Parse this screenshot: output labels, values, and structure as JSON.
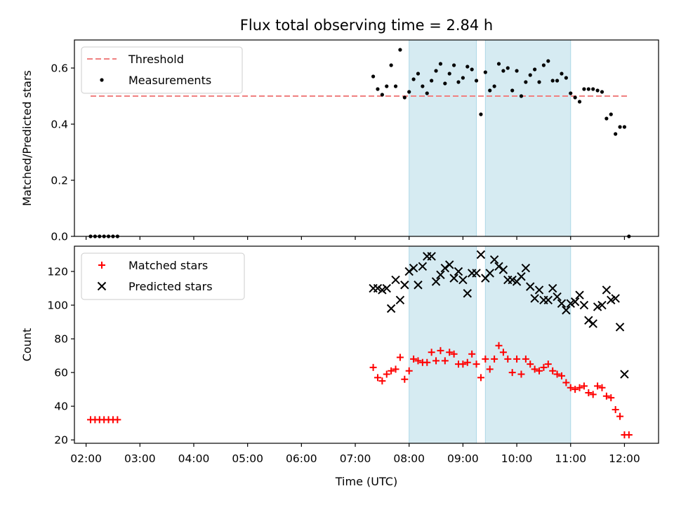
{
  "title": "Flux total observing time = 2.84 h",
  "xlabel": "Time (UTC)",
  "x_ticks": [
    "02:00",
    "03:00",
    "04:00",
    "05:00",
    "06:00",
    "07:00",
    "08:00",
    "09:00",
    "10:00",
    "11:00",
    "12:00"
  ],
  "chart_data": [
    {
      "type": "scatter",
      "ylabel": "Matched/Predicted stars",
      "xlim": [
        "01:47",
        "12:38"
      ],
      "ylim": [
        0,
        0.7
      ],
      "y_ticks": [
        0.0,
        0.2,
        0.4,
        0.6
      ],
      "y_tick_labels": [
        "0.0",
        "0.2",
        "0.4",
        "0.6"
      ],
      "shaded_intervals": [
        [
          "08:00",
          "09:15"
        ],
        [
          "09:25",
          "11:00"
        ]
      ],
      "legend_position": "top-left",
      "grid": false,
      "series": [
        {
          "name": "Threshold",
          "style": "dashed-line",
          "color": "#f08080",
          "x": [
            "02:05",
            "12:05"
          ],
          "y": [
            0.5,
            0.5
          ]
        },
        {
          "name": "Measurements",
          "style": "dot",
          "color": "#000000",
          "x": [
            "02:05",
            "02:10",
            "02:15",
            "02:20",
            "02:25",
            "02:30",
            "02:35",
            "07:20",
            "07:25",
            "07:30",
            "07:35",
            "07:40",
            "07:45",
            "07:50",
            "07:55",
            "08:00",
            "08:05",
            "08:10",
            "08:15",
            "08:20",
            "08:25",
            "08:30",
            "08:35",
            "08:40",
            "08:45",
            "08:50",
            "08:55",
            "09:00",
            "09:05",
            "09:10",
            "09:15",
            "09:20",
            "09:25",
            "09:30",
            "09:35",
            "09:40",
            "09:45",
            "09:50",
            "09:55",
            "10:00",
            "10:05",
            "10:10",
            "10:15",
            "10:20",
            "10:25",
            "10:30",
            "10:35",
            "10:40",
            "10:45",
            "10:50",
            "10:55",
            "11:00",
            "11:05",
            "11:10",
            "11:15",
            "11:20",
            "11:25",
            "11:30",
            "11:35",
            "11:40",
            "11:45",
            "11:50",
            "11:55",
            "12:00",
            "12:05"
          ],
          "y": [
            0,
            0,
            0,
            0,
            0,
            0,
            0,
            0.57,
            0.525,
            0.505,
            0.535,
            0.61,
            0.535,
            0.665,
            0.495,
            0.515,
            0.56,
            0.58,
            0.535,
            0.51,
            0.555,
            0.59,
            0.615,
            0.545,
            0.58,
            0.61,
            0.55,
            0.565,
            0.605,
            0.595,
            0.555,
            0.435,
            0.585,
            0.52,
            0.535,
            0.615,
            0.59,
            0.6,
            0.52,
            0.59,
            0.5,
            0.55,
            0.575,
            0.595,
            0.55,
            0.61,
            0.625,
            0.555,
            0.555,
            0.58,
            0.565,
            0.51,
            0.495,
            0.48,
            0.525,
            0.525,
            0.525,
            0.52,
            0.515,
            0.42,
            0.435,
            0.365,
            0.39,
            0.39,
            0
          ]
        }
      ]
    },
    {
      "type": "scatter",
      "ylabel": "Count",
      "xlim": [
        "01:47",
        "12:38"
      ],
      "ylim": [
        18,
        135
      ],
      "y_ticks": [
        20,
        40,
        60,
        80,
        100,
        120
      ],
      "y_tick_labels": [
        "20",
        "40",
        "60",
        "80",
        "100",
        "120"
      ],
      "shaded_intervals": [
        [
          "08:00",
          "09:15"
        ],
        [
          "09:25",
          "11:00"
        ]
      ],
      "legend_position": "top-left",
      "grid": false,
      "series": [
        {
          "name": "Matched stars",
          "style": "plus",
          "color": "#ff0000",
          "x": [
            "02:05",
            "02:10",
            "02:15",
            "02:20",
            "02:25",
            "02:30",
            "02:35",
            "07:20",
            "07:25",
            "07:30",
            "07:35",
            "07:40",
            "07:45",
            "07:50",
            "07:55",
            "08:00",
            "08:05",
            "08:10",
            "08:15",
            "08:20",
            "08:25",
            "08:30",
            "08:35",
            "08:40",
            "08:45",
            "08:50",
            "08:55",
            "09:00",
            "09:05",
            "09:10",
            "09:15",
            "09:20",
            "09:25",
            "09:30",
            "09:35",
            "09:40",
            "09:45",
            "09:50",
            "09:55",
            "10:00",
            "10:05",
            "10:10",
            "10:15",
            "10:20",
            "10:25",
            "10:30",
            "10:35",
            "10:40",
            "10:45",
            "10:50",
            "10:55",
            "11:00",
            "11:05",
            "11:10",
            "11:15",
            "11:20",
            "11:25",
            "11:30",
            "11:35",
            "11:40",
            "11:45",
            "11:50",
            "11:55",
            "12:00",
            "12:05"
          ],
          "y": [
            32,
            32,
            32,
            32,
            32,
            32,
            32,
            63,
            57,
            55,
            59,
            61,
            62,
            69,
            56,
            61,
            68,
            67,
            66,
            66,
            72,
            67,
            73,
            67,
            72,
            71,
            65,
            65,
            66,
            71,
            65,
            57,
            68,
            62,
            68,
            76,
            72,
            68,
            60,
            68,
            59,
            68,
            65,
            62,
            61,
            63,
            65,
            61,
            59,
            58,
            54,
            51,
            50,
            51,
            52,
            48,
            47,
            52,
            51,
            46,
            45,
            38,
            34,
            23,
            23
          ]
        },
        {
          "name": "Predicted stars",
          "style": "x",
          "color": "#000000",
          "x": [
            "07:20",
            "07:25",
            "07:30",
            "07:35",
            "07:40",
            "07:45",
            "07:50",
            "07:55",
            "08:00",
            "08:05",
            "08:10",
            "08:15",
            "08:20",
            "08:25",
            "08:30",
            "08:35",
            "08:40",
            "08:45",
            "08:50",
            "08:55",
            "09:00",
            "09:05",
            "09:10",
            "09:15",
            "09:20",
            "09:25",
            "09:30",
            "09:35",
            "09:40",
            "09:45",
            "09:50",
            "09:55",
            "10:00",
            "10:05",
            "10:10",
            "10:15",
            "10:20",
            "10:25",
            "10:30",
            "10:35",
            "10:40",
            "10:45",
            "10:50",
            "10:55",
            "11:00",
            "11:05",
            "11:10",
            "11:15",
            "11:20",
            "11:25",
            "11:30",
            "11:35",
            "11:40",
            "11:45",
            "11:50",
            "11:55",
            "12:00"
          ],
          "y": [
            110,
            110,
            109,
            110,
            98,
            115,
            103,
            112,
            120,
            122,
            112,
            123,
            129,
            129,
            114,
            118,
            122,
            124,
            116,
            120,
            115,
            107,
            119,
            119,
            130,
            116,
            119,
            127,
            123,
            121,
            115,
            115,
            114,
            117,
            122,
            111,
            104,
            109,
            103,
            103,
            110,
            105,
            101,
            97,
            101,
            102,
            106,
            100,
            91,
            89,
            99,
            100,
            109,
            103,
            104,
            87,
            59
          ]
        }
      ]
    }
  ]
}
